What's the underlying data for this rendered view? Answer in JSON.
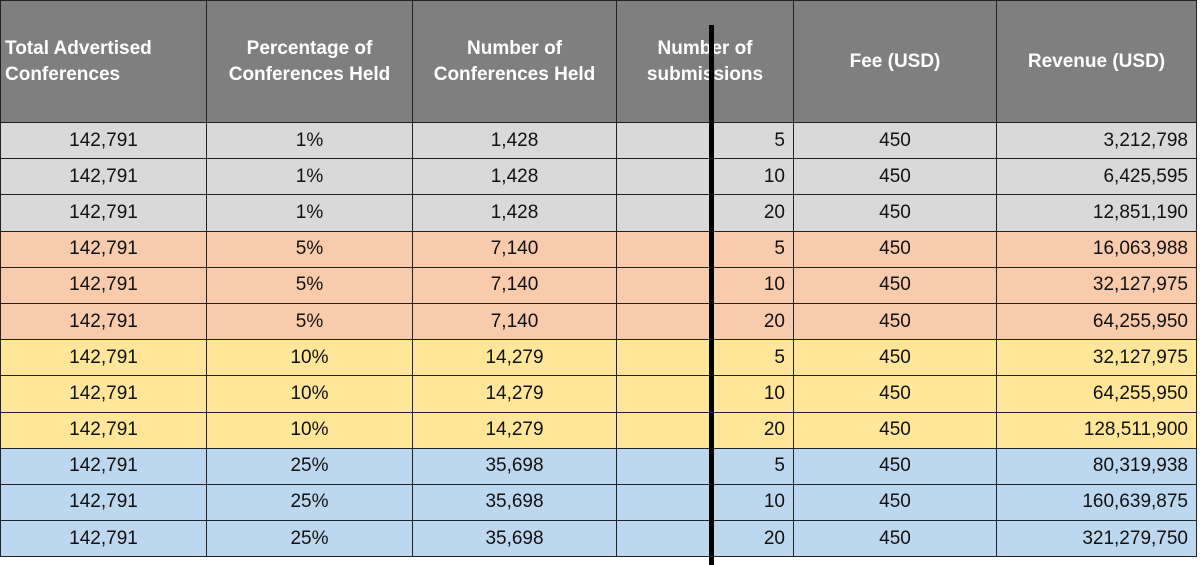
{
  "table": {
    "headers": [
      "Total Advertised Conferences",
      "Percentage of Conferences Held",
      "Number of Conferences Held",
      "Number of submissions",
      "Fee (USD)",
      "Revenue (USD)"
    ],
    "rows": [
      [
        "142,791",
        "1%",
        "1,428",
        "5",
        "450",
        "3,212,798"
      ],
      [
        "142,791",
        "1%",
        "1,428",
        "10",
        "450",
        "6,425,595"
      ],
      [
        "142,791",
        "1%",
        "1,428",
        "20",
        "450",
        "12,851,190"
      ],
      [
        "142,791",
        "5%",
        "7,140",
        "5",
        "450",
        "16,063,988"
      ],
      [
        "142,791",
        "5%",
        "7,140",
        "10",
        "450",
        "32,127,975"
      ],
      [
        "142,791",
        "5%",
        "7,140",
        "20",
        "450",
        "64,255,950"
      ],
      [
        "142,791",
        "10%",
        "14,279",
        "5",
        "450",
        "32,127,975"
      ],
      [
        "142,791",
        "10%",
        "14,279",
        "10",
        "450",
        "64,255,950"
      ],
      [
        "142,791",
        "10%",
        "14,279",
        "20",
        "450",
        "128,511,900"
      ],
      [
        "142,791",
        "25%",
        "35,698",
        "5",
        "450",
        "80,319,938"
      ],
      [
        "142,791",
        "25%",
        "35,698",
        "10",
        "450",
        "160,639,875"
      ],
      [
        "142,791",
        "25%",
        "35,698",
        "20",
        "450",
        "321,279,750"
      ]
    ]
  }
}
